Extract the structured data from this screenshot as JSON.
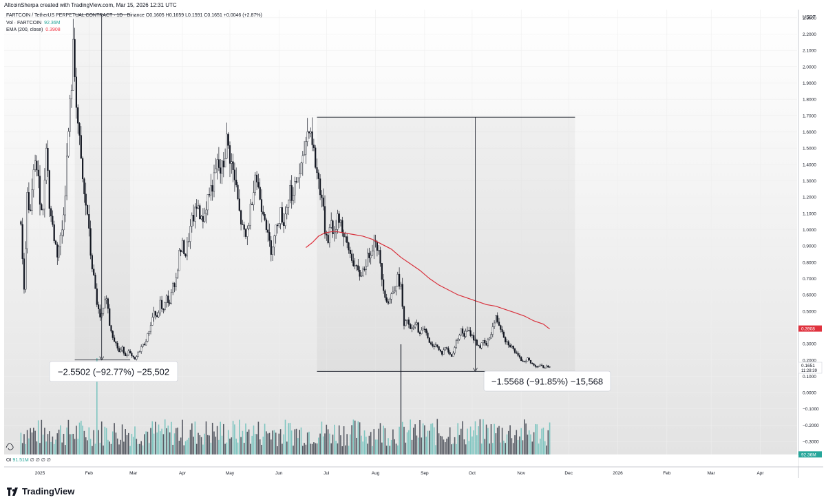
{
  "header": {
    "attribution": "AltcoinSherpa created with TradingView.com, Mar 15, 2026 12:31 UTC"
  },
  "legend": {
    "symbol_line": "FARTCOIN / TetherUS PERPETUAL CONTRACT · 1D · Binance",
    "ohlc": {
      "open_label": "O",
      "open": "0.1605",
      "high_label": "H",
      "high": "0.1659",
      "low_label": "L",
      "low": "0.1591",
      "close_label": "C",
      "close": "0.1651",
      "change": "+0.0046 (+2.87%)"
    },
    "volume_label": "Vol · FARTCOIN",
    "volume_value": "92.36M",
    "ema_label": "EMA (200, close)",
    "ema_value": "0.3908"
  },
  "oi_row": {
    "label": "OI",
    "value": "91.51M",
    "extra": "∅ ∅ ∅ ∅"
  },
  "brand": {
    "name": "TradingView"
  },
  "colors": {
    "candle": "#131722",
    "ema": "#e0323e",
    "vol_up": "#7ec5c0",
    "vol_down": "#555962",
    "price_tag_ema": "#e0323e",
    "price_tag_vol": "#26a69a",
    "grid": "#eeeeee"
  },
  "chart_data": {
    "type": "candlestick",
    "title": "FARTCOIN / TetherUS PERPETUAL CONTRACT · 1D · Binance",
    "currency_label": "USDT",
    "y_ticks": [
      "2.3000",
      "2.2000",
      "2.1000",
      "2.0000",
      "1.9000",
      "1.8000",
      "1.7000",
      "1.6000",
      "1.5000",
      "1.4000",
      "1.3000",
      "1.2000",
      "1.1000",
      "1.0000",
      "0.9000",
      "0.8000",
      "0.7000",
      "0.6000",
      "0.5000",
      "0.4000",
      "0.3000",
      "0.2000",
      "0.1000",
      "0.0000",
      "−0.1000",
      "−0.2000",
      "−0.3000"
    ],
    "ylim": [
      -0.38,
      2.35
    ],
    "x_labels": [
      "2025",
      "Feb",
      "Mar",
      "Apr",
      "May",
      "Jun",
      "Jul",
      "Aug",
      "Sep",
      "Oct",
      "Nov",
      "Dec",
      "2026",
      "Feb",
      "Mar",
      "Apr"
    ],
    "x_label_days": [
      0,
      31,
      59,
      90,
      120,
      151,
      181,
      212,
      243,
      273,
      304,
      334,
      365,
      396,
      424,
      455
    ],
    "total_days": 470,
    "last_day": 438,
    "price_path": [
      [
        -12,
        1.05
      ],
      [
        -10,
        0.62
      ],
      [
        -8,
        1.2
      ],
      [
        -6,
        1.1
      ],
      [
        -3,
        1.45
      ],
      [
        0,
        1.2
      ],
      [
        2,
        1.1
      ],
      [
        4,
        1.55
      ],
      [
        6,
        1.15
      ],
      [
        9,
        0.95
      ],
      [
        11,
        0.85
      ],
      [
        14,
        1.0
      ],
      [
        16,
        1.25
      ],
      [
        18,
        1.6
      ],
      [
        20,
        1.9
      ],
      [
        21,
        2.1
      ],
      [
        22,
        1.95
      ],
      [
        24,
        1.65
      ],
      [
        26,
        1.4
      ],
      [
        28,
        1.2
      ],
      [
        30,
        1.1
      ],
      [
        32,
        0.85
      ],
      [
        34,
        0.7
      ],
      [
        36,
        0.55
      ],
      [
        38,
        0.45
      ],
      [
        40,
        0.5
      ],
      [
        42,
        0.6
      ],
      [
        44,
        0.42
      ],
      [
        46,
        0.35
      ],
      [
        48,
        0.3
      ],
      [
        50,
        0.25
      ],
      [
        52,
        0.27
      ],
      [
        54,
        0.23
      ],
      [
        56,
        0.25
      ],
      [
        58,
        0.22
      ],
      [
        60,
        0.2
      ],
      [
        62,
        0.24
      ],
      [
        64,
        0.28
      ],
      [
        66,
        0.3
      ],
      [
        68,
        0.35
      ],
      [
        70,
        0.42
      ],
      [
        72,
        0.5
      ],
      [
        74,
        0.45
      ],
      [
        76,
        0.55
      ],
      [
        78,
        0.5
      ],
      [
        80,
        0.58
      ],
      [
        82,
        0.55
      ],
      [
        84,
        0.65
      ],
      [
        86,
        0.7
      ],
      [
        88,
        0.85
      ],
      [
        90,
        0.9
      ],
      [
        92,
        0.85
      ],
      [
        94,
        0.95
      ],
      [
        96,
        1.05
      ],
      [
        98,
        1.1
      ],
      [
        100,
        1.15
      ],
      [
        102,
        1.05
      ],
      [
        104,
        1.1
      ],
      [
        106,
        1.2
      ],
      [
        108,
        1.25
      ],
      [
        110,
        1.3
      ],
      [
        112,
        1.4
      ],
      [
        114,
        1.35
      ],
      [
        116,
        1.4
      ],
      [
        118,
        1.55
      ],
      [
        120,
        1.45
      ],
      [
        122,
        1.35
      ],
      [
        124,
        1.25
      ],
      [
        126,
        1.1
      ],
      [
        128,
        1.0
      ],
      [
        130,
        0.95
      ],
      [
        132,
        1.05
      ],
      [
        134,
        1.2
      ],
      [
        136,
        1.35
      ],
      [
        138,
        1.25
      ],
      [
        140,
        1.15
      ],
      [
        142,
        1.1
      ],
      [
        144,
        0.95
      ],
      [
        146,
        0.88
      ],
      [
        148,
        0.95
      ],
      [
        150,
        1.05
      ],
      [
        152,
        1.1
      ],
      [
        154,
        1.05
      ],
      [
        156,
        1.15
      ],
      [
        158,
        1.25
      ],
      [
        160,
        1.2
      ],
      [
        162,
        1.3
      ],
      [
        164,
        1.35
      ],
      [
        166,
        1.4
      ],
      [
        168,
        1.55
      ],
      [
        170,
        1.65
      ],
      [
        172,
        1.55
      ],
      [
        174,
        1.4
      ],
      [
        176,
        1.3
      ],
      [
        178,
        1.2
      ],
      [
        180,
        1.0
      ],
      [
        182,
        0.95
      ],
      [
        184,
        1.05
      ],
      [
        186,
        0.95
      ],
      [
        188,
        1.1
      ],
      [
        190,
        1.05
      ],
      [
        192,
        0.95
      ],
      [
        194,
        0.9
      ],
      [
        196,
        0.85
      ],
      [
        198,
        0.8
      ],
      [
        200,
        0.75
      ],
      [
        202,
        0.72
      ],
      [
        204,
        0.75
      ],
      [
        206,
        0.8
      ],
      [
        208,
        0.85
      ],
      [
        210,
        0.9
      ],
      [
        212,
        0.95
      ],
      [
        214,
        0.85
      ],
      [
        216,
        0.7
      ],
      [
        218,
        0.6
      ],
      [
        220,
        0.55
      ],
      [
        222,
        0.6
      ],
      [
        224,
        0.65
      ],
      [
        226,
        0.7
      ],
      [
        228,
        0.65
      ],
      [
        230,
        0.4
      ],
      [
        232,
        0.45
      ],
      [
        234,
        0.38
      ],
      [
        236,
        0.4
      ],
      [
        238,
        0.42
      ],
      [
        240,
        0.35
      ],
      [
        242,
        0.4
      ],
      [
        244,
        0.38
      ],
      [
        246,
        0.3
      ],
      [
        248,
        0.28
      ],
      [
        250,
        0.3
      ],
      [
        252,
        0.26
      ],
      [
        254,
        0.24
      ],
      [
        256,
        0.28
      ],
      [
        258,
        0.25
      ],
      [
        260,
        0.22
      ],
      [
        262,
        0.28
      ],
      [
        264,
        0.34
      ],
      [
        266,
        0.38
      ],
      [
        268,
        0.35
      ],
      [
        270,
        0.38
      ],
      [
        272,
        0.36
      ],
      [
        274,
        0.33
      ],
      [
        276,
        0.3
      ],
      [
        278,
        0.28
      ],
      [
        280,
        0.31
      ],
      [
        282,
        0.29
      ],
      [
        284,
        0.34
      ],
      [
        286,
        0.4
      ],
      [
        288,
        0.46
      ],
      [
        290,
        0.42
      ],
      [
        292,
        0.38
      ],
      [
        294,
        0.32
      ],
      [
        296,
        0.3
      ],
      [
        298,
        0.28
      ],
      [
        300,
        0.25
      ],
      [
        302,
        0.22
      ],
      [
        304,
        0.2
      ],
      [
        306,
        0.19
      ],
      [
        308,
        0.21
      ],
      [
        310,
        0.18
      ],
      [
        312,
        0.17
      ],
      [
        314,
        0.16
      ],
      [
        316,
        0.165
      ],
      [
        318,
        0.155
      ],
      [
        320,
        0.16
      ],
      [
        322,
        0.165
      ]
    ],
    "ema_path": [
      [
        168,
        0.89
      ],
      [
        172,
        0.92
      ],
      [
        176,
        0.96
      ],
      [
        180,
        0.98
      ],
      [
        186,
        0.99
      ],
      [
        192,
        0.98
      ],
      [
        198,
        0.97
      ],
      [
        204,
        0.96
      ],
      [
        210,
        0.94
      ],
      [
        216,
        0.91
      ],
      [
        222,
        0.88
      ],
      [
        228,
        0.83
      ],
      [
        234,
        0.79
      ],
      [
        240,
        0.75
      ],
      [
        246,
        0.7
      ],
      [
        252,
        0.66
      ],
      [
        258,
        0.63
      ],
      [
        264,
        0.6
      ],
      [
        270,
        0.58
      ],
      [
        276,
        0.56
      ],
      [
        282,
        0.54
      ],
      [
        288,
        0.53
      ],
      [
        294,
        0.51
      ],
      [
        300,
        0.49
      ],
      [
        306,
        0.47
      ],
      [
        312,
        0.44
      ],
      [
        318,
        0.42
      ],
      [
        322,
        0.39
      ]
    ],
    "measurements": [
      {
        "label": "−2.5502 (−92.77%) −25,502",
        "from_price": 2.32,
        "to_price": 0.2,
        "day_start": 22,
        "day_end": 57,
        "arrow_day": 39
      },
      {
        "label": "−1.5568 (−91.85%) −15,568",
        "from_price": 1.69,
        "to_price": 0.13,
        "day_start": 175,
        "day_end": 338,
        "arrow_day": 275
      }
    ],
    "price_tags": [
      {
        "label": "0.3908",
        "value": 0.3908,
        "color": "#e0323e"
      },
      {
        "label": "0.1651",
        "value": 0.1651,
        "sub": "11:28:39",
        "color": "#ffffff"
      },
      {
        "label": "92.36M",
        "value": -0.3815,
        "color": "#26a69a"
      }
    ],
    "volume_note": "volume histogram at bottom; spikes near early Feb 2025 and mid-Aug 2025"
  }
}
